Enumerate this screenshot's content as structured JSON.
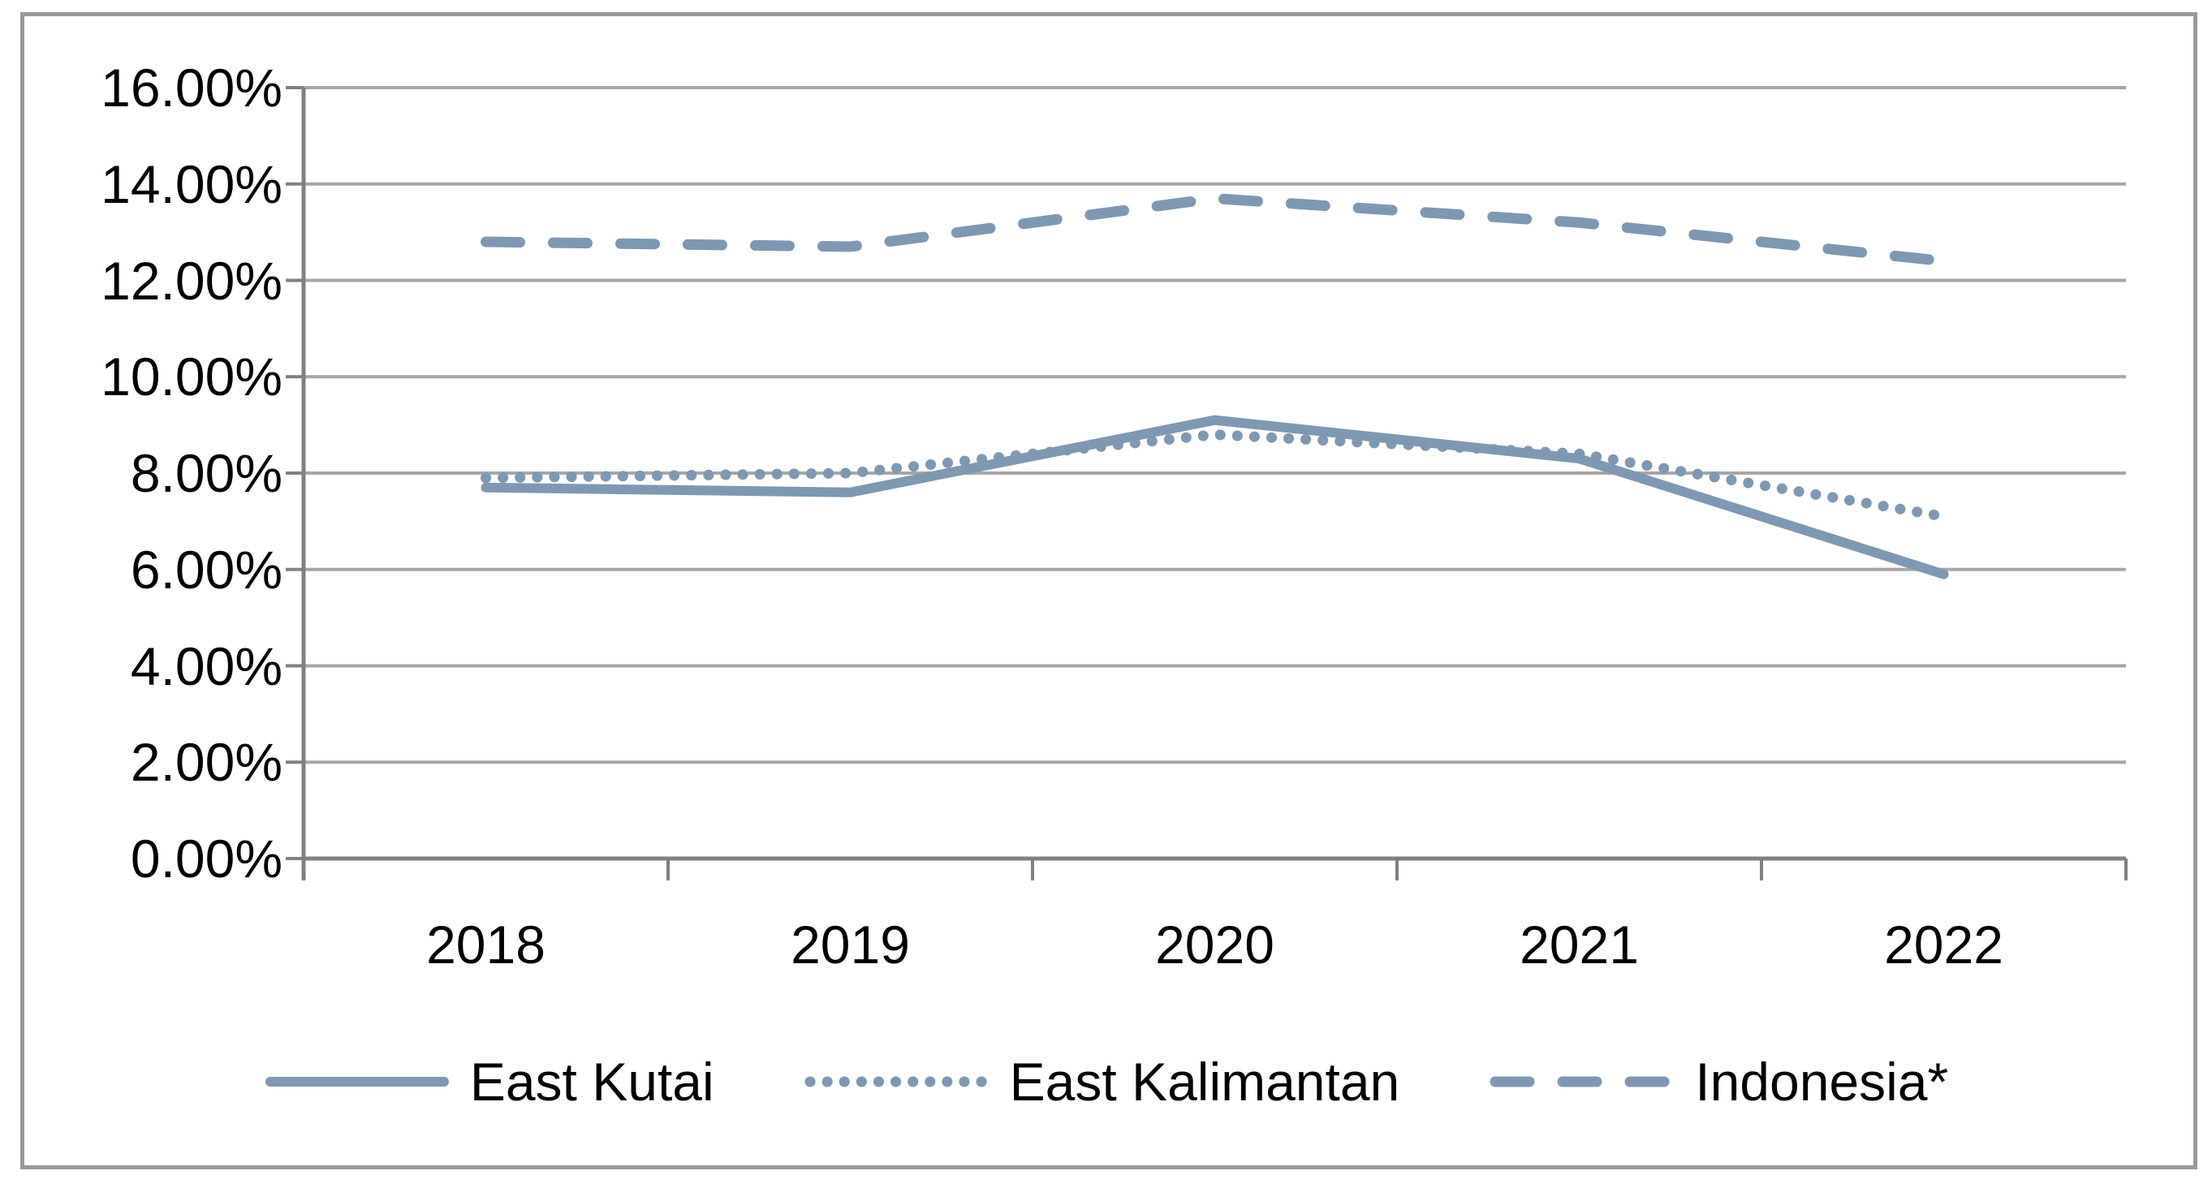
{
  "figure": {
    "background": "#FFFFFF",
    "border_color": "#999999"
  },
  "colors": {
    "series_line": "#7F98B2",
    "gridline": "#A6A6A6",
    "axis": "#808080",
    "label_text": "#000000"
  },
  "chart_data": {
    "type": "line",
    "title": "",
    "xlabel": "",
    "ylabel": "",
    "categories": [
      "2018",
      "2019",
      "2020",
      "2021",
      "2022"
    ],
    "series": [
      {
        "name": "East Kutai",
        "style": "solid",
        "values": [
          7.7,
          7.6,
          9.1,
          8.3,
          5.9
        ]
      },
      {
        "name": "East Kalimantan",
        "style": "dotted",
        "values": [
          7.9,
          8.0,
          8.8,
          8.4,
          7.1
        ]
      },
      {
        "name": "Indonesia*",
        "style": "dashed",
        "values": [
          12.8,
          12.7,
          13.7,
          13.2,
          12.4
        ]
      }
    ],
    "ylim": [
      0,
      16
    ],
    "ytick_step": 2,
    "ytick_labels": [
      "0.00%",
      "2.00%",
      "4.00%",
      "6.00%",
      "8.00%",
      "10.00%",
      "12.00%",
      "14.00%",
      "16.00%"
    ],
    "values_unit": "percent",
    "grid": true,
    "legend_position": "bottom"
  }
}
